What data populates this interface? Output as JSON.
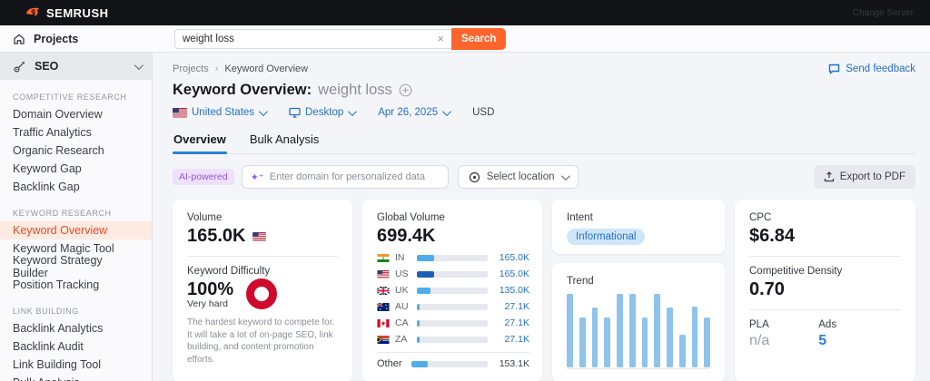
{
  "topbar": {
    "brand": "SEMRUSH",
    "faint_text": "Change Server"
  },
  "header": {
    "projects_label": "Projects",
    "search_value": "weight loss",
    "clear_icon": "×",
    "search_button": "Search"
  },
  "sidebar": {
    "seo_label": "SEO",
    "sections": [
      {
        "label": "COMPETITIVE RESEARCH",
        "items": [
          "Domain Overview",
          "Traffic Analytics",
          "Organic Research",
          "Keyword Gap",
          "Backlink Gap"
        ]
      },
      {
        "label": "KEYWORD RESEARCH",
        "items": [
          "Keyword Overview",
          "Keyword Magic Tool",
          "Keyword Strategy Builder",
          "Position Tracking"
        ]
      },
      {
        "label": "LINK BUILDING",
        "items": [
          "Backlink Analytics",
          "Backlink Audit",
          "Link Building Tool",
          "Bulk Analysis"
        ]
      }
    ],
    "active_item": "Keyword Overview"
  },
  "breadcrumb": {
    "item1": "Projects",
    "separator": "›",
    "item2": "Keyword Overview"
  },
  "feedback_label": "Send feedback",
  "page": {
    "title": "Keyword Overview:",
    "keyword": "weight loss"
  },
  "filters": {
    "country": "United States",
    "device": "Desktop",
    "date": "Apr 26, 2025",
    "currency": "USD"
  },
  "tabs": {
    "overview": "Overview",
    "bulk": "Bulk Analysis"
  },
  "toolbar": {
    "ai_badge": "AI-powered",
    "sparkle": "✦⁺",
    "domain_placeholder": "Enter domain for personalized data",
    "location_label": "Select location",
    "export_label": "Export to PDF"
  },
  "cards": {
    "volume": {
      "label": "Volume",
      "value": "165.0K"
    },
    "difficulty": {
      "label": "Keyword Difficulty",
      "value": "100%",
      "level": "Very hard",
      "description": "The hardest keyword to compete for. It will take a lot of on-page SEO, link building, and content promotion efforts.",
      "ring_color": "#cf0a2c"
    },
    "global_volume": {
      "label": "Global Volume",
      "value": "699.4K",
      "rows": [
        {
          "code": "IN",
          "value": "165.0K",
          "percent": 24,
          "color": "#4fadea"
        },
        {
          "code": "US",
          "value": "165.0K",
          "percent": 24,
          "color": "#1d5fb8"
        },
        {
          "code": "UK",
          "value": "135.0K",
          "percent": 19,
          "color": "#4fadea"
        },
        {
          "code": "AU",
          "value": "27.1K",
          "percent": 4,
          "color": "#4fadea"
        },
        {
          "code": "CA",
          "value": "27.1K",
          "percent": 4,
          "color": "#4fadea"
        },
        {
          "code": "ZA",
          "value": "27.1K",
          "percent": 4,
          "color": "#4fadea"
        }
      ],
      "other": {
        "label": "Other",
        "value": "153.1K",
        "percent": 22,
        "color": "#4fadea"
      }
    },
    "intent": {
      "label": "Intent",
      "badge": "Informational",
      "badge_bg": "#cfe6f9",
      "badge_color": "#2470c2"
    },
    "trend": {
      "label": "Trend",
      "values": [
        100,
        68,
        82,
        68,
        100,
        100,
        68,
        100,
        82,
        45,
        83,
        68
      ],
      "bar_color": "#8fc3eb"
    },
    "cpc": {
      "label": "CPC",
      "value": "$6.84"
    },
    "competitive_density": {
      "label": "Competitive Density",
      "value": "0.70"
    },
    "pla": {
      "label": "PLA",
      "value": "n/a"
    },
    "ads": {
      "label": "Ads",
      "value": "5"
    }
  },
  "colors": {
    "accent_orange": "#ff642d",
    "link_blue": "#2470c2",
    "active_sidebar": "#e74c25"
  }
}
